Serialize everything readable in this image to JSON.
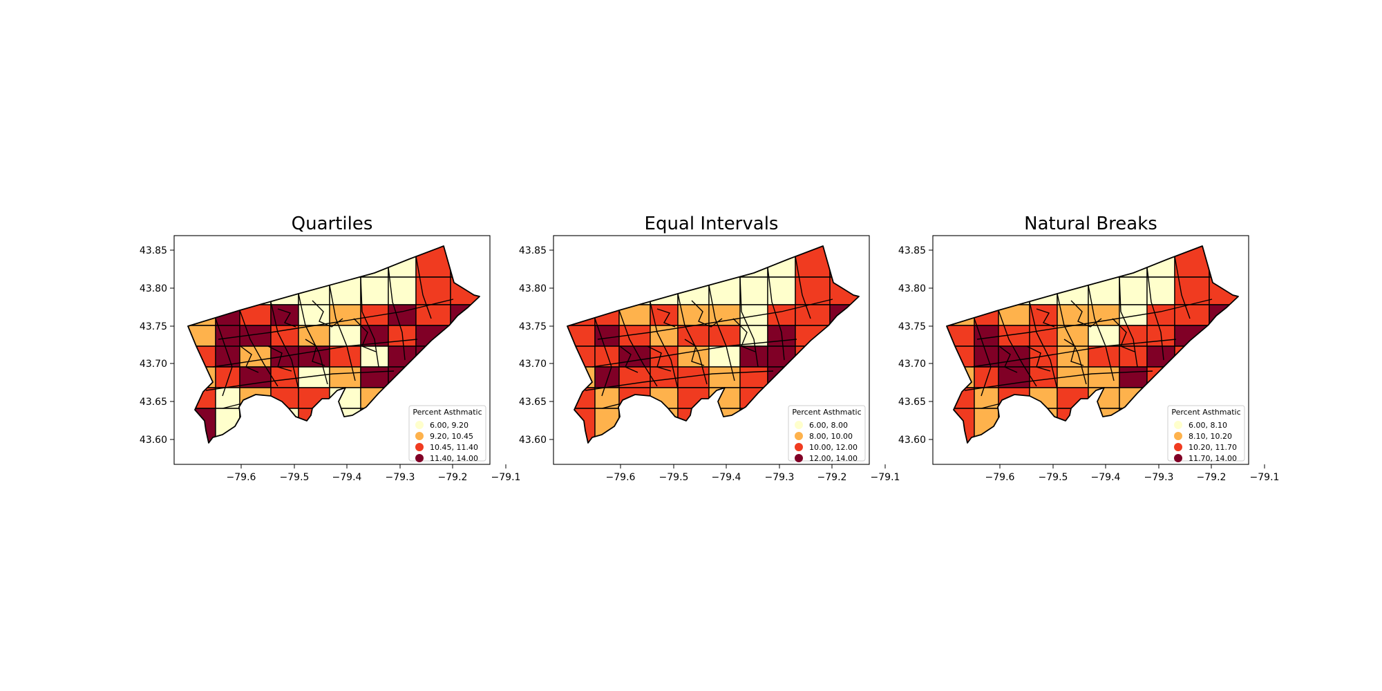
{
  "colors": {
    "class_1": "#ffffcc",
    "class_2": "#feb24c",
    "class_3": "#f03b20",
    "class_4": "#800026"
  },
  "chart_data": [
    {
      "type": "choropleth",
      "title": "Quartiles",
      "legend": {
        "title": "Percent Asthmatic",
        "placement": "lower-right",
        "entries": [
          "6.00,  9.20",
          "9.20, 10.45",
          "10.45, 11.40",
          "11.40, 14.00"
        ]
      },
      "x_ticks": [
        "−79.6",
        "−79.5",
        "−79.4",
        "−79.3",
        "−79.2",
        "−79.1"
      ],
      "y_ticks": [
        "43.85",
        "43.80",
        "43.75",
        "43.70",
        "43.65",
        "43.60"
      ],
      "xlim": [
        -79.66,
        -79.09
      ],
      "ylim": [
        43.57,
        43.87
      ],
      "grid": false
    },
    {
      "type": "choropleth",
      "title": "Equal Intervals",
      "legend": {
        "title": "Percent Asthmatic",
        "placement": "lower-right",
        "entries": [
          "6.00,  8.00",
          "8.00, 10.00",
          "10.00, 12.00",
          "12.00, 14.00"
        ]
      },
      "x_ticks": [
        "−79.6",
        "−79.5",
        "−79.4",
        "−79.3",
        "−79.2",
        "−79.1"
      ],
      "y_ticks": [
        "43.85",
        "43.80",
        "43.75",
        "43.70",
        "43.65",
        "43.60"
      ],
      "xlim": [
        -79.66,
        -79.09
      ],
      "ylim": [
        43.57,
        43.87
      ],
      "grid": false
    },
    {
      "type": "choropleth",
      "title": "Natural Breaks",
      "legend": {
        "title": "Percent Asthmatic",
        "placement": "lower-right",
        "entries": [
          "6.00,  8.10",
          "8.10, 10.20",
          "10.20, 11.70",
          "11.70, 14.00"
        ]
      },
      "x_ticks": [
        "−79.6",
        "−79.5",
        "−79.4",
        "−79.3",
        "−79.2",
        "−79.1"
      ],
      "y_ticks": [
        "43.85",
        "43.80",
        "43.75",
        "43.70",
        "43.65",
        "43.60"
      ],
      "xlim": [
        -79.66,
        -79.09
      ],
      "ylim": [
        43.57,
        43.87
      ],
      "grid": false
    }
  ]
}
